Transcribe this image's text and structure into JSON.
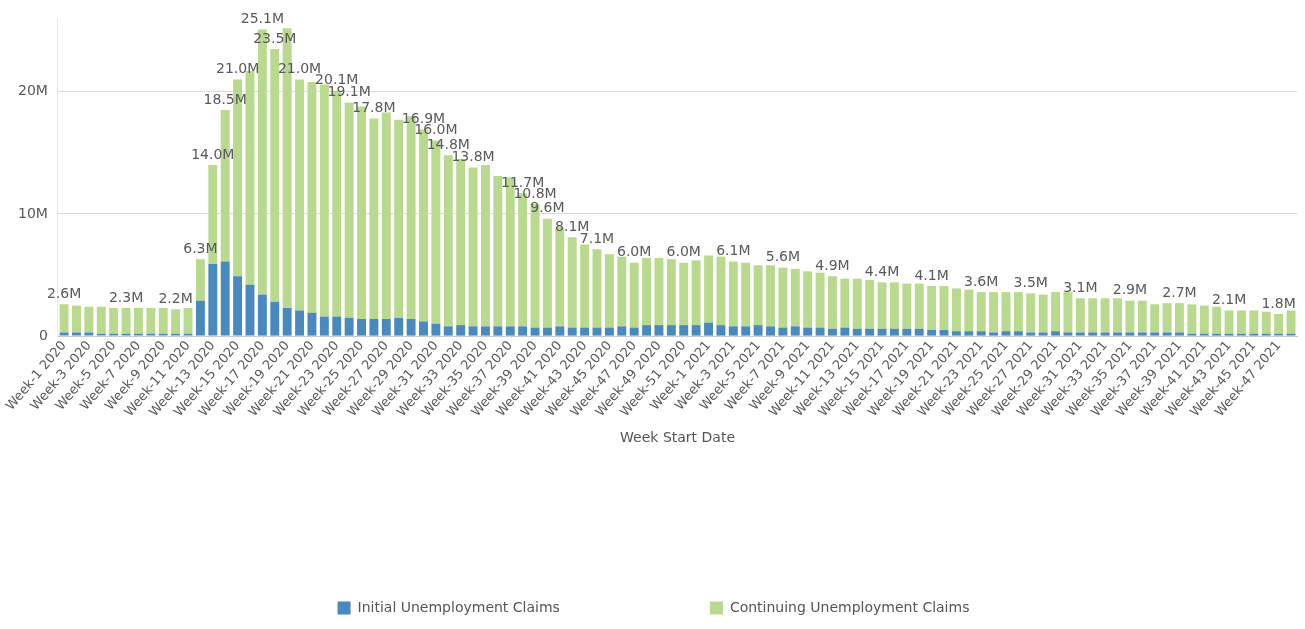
{
  "chart_data": {
    "type": "bar",
    "stacked": true,
    "xlabel": "Week Start Date",
    "categories": [
      "Week-1 2020",
      null,
      "Week-3 2020",
      null,
      "Week-5 2020",
      null,
      "Week-7 2020",
      null,
      "Week-9 2020",
      null,
      "Week-11 2020",
      null,
      "Week-13 2020",
      null,
      "Week-15 2020",
      null,
      "Week-17 2020",
      null,
      "Week-19 2020",
      null,
      "Week-21 2020",
      null,
      "Week-23 2020",
      null,
      "Week-25 2020",
      null,
      "Week-27 2020",
      null,
      "Week-29 2020",
      null,
      "Week-31 2020",
      null,
      "Week-33 2020",
      null,
      "Week-35 2020",
      null,
      "Week-37 2020",
      null,
      "Week-39 2020",
      null,
      "Week-41 2020",
      null,
      "Week-43 2020",
      null,
      "Week-45 2020",
      null,
      "Week-47 2020",
      null,
      "Week-49 2020",
      null,
      "Week-51 2020",
      null,
      "Week-1 2021",
      null,
      "Week-3 2021",
      null,
      "Week-5 2021",
      null,
      "Week-7 2021",
      null,
      "Week-9 2021",
      null,
      "Week-11 2021",
      null,
      "Week-13 2021",
      null,
      "Week-15 2021",
      null,
      "Week-17 2021",
      null,
      "Week-19 2021",
      null,
      "Week-21 2021",
      null,
      "Week-23 2021",
      null,
      "Week-25 2021",
      null,
      "Week-27 2021",
      null,
      "Week-29 2021",
      null,
      "Week-31 2021",
      null,
      "Week-33 2021",
      null,
      "Week-35 2021",
      null,
      "Week-37 2021",
      null,
      "Week-39 2021",
      null,
      "Week-41 2021",
      null,
      "Week-43 2021",
      null,
      "Week-45 2021",
      null,
      "Week-47 2021",
      null
    ],
    "series": [
      {
        "name": "Initial Unemployment Claims",
        "color": "#4a89bd",
        "values": [
          0.3,
          0.3,
          0.3,
          0.2,
          0.2,
          0.2,
          0.2,
          0.2,
          0.2,
          0.2,
          0.2,
          2.9,
          5.9,
          6.1,
          4.9,
          4.2,
          3.4,
          2.8,
          2.3,
          2.1,
          1.9,
          1.6,
          1.6,
          1.5,
          1.4,
          1.4,
          1.4,
          1.5,
          1.4,
          1.2,
          1.0,
          0.8,
          0.9,
          0.8,
          0.8,
          0.8,
          0.8,
          0.8,
          0.7,
          0.7,
          0.8,
          0.7,
          0.7,
          0.7,
          0.7,
          0.8,
          0.7,
          0.9,
          0.9,
          0.9,
          0.9,
          0.9,
          1.1,
          0.9,
          0.8,
          0.8,
          0.9,
          0.8,
          0.7,
          0.8,
          0.7,
          0.7,
          0.6,
          0.7,
          0.6,
          0.6,
          0.6,
          0.6,
          0.6,
          0.6,
          0.5,
          0.5,
          0.4,
          0.4,
          0.4,
          0.3,
          0.4,
          0.4,
          0.3,
          0.3,
          0.4,
          0.3,
          0.3,
          0.3,
          0.3,
          0.3,
          0.3,
          0.3,
          0.3,
          0.3,
          0.3,
          0.2,
          0.2,
          0.2,
          0.2,
          0.2,
          0.2,
          0.2,
          0.2,
          0.2
        ]
      },
      {
        "name": "Continuing Unemployment Claims",
        "color": "#b9d98e",
        "values": [
          2.3,
          2.2,
          2.1,
          2.2,
          2.1,
          2.1,
          2.1,
          2.1,
          2.1,
          2.0,
          2.1,
          3.4,
          8.1,
          12.4,
          16.1,
          17.5,
          21.7,
          20.7,
          22.9,
          18.9,
          18.9,
          19.0,
          18.5,
          17.6,
          17.4,
          16.4,
          16.9,
          16.2,
          16.6,
          15.7,
          15.0,
          14.0,
          13.6,
          13.0,
          13.2,
          12.3,
          12.2,
          10.9,
          10.1,
          8.9,
          8.1,
          7.4,
          6.8,
          6.4,
          6.0,
          5.7,
          5.3,
          5.5,
          5.5,
          5.4,
          5.1,
          5.3,
          5.5,
          5.6,
          5.3,
          5.2,
          4.9,
          5.0,
          4.9,
          4.7,
          4.6,
          4.5,
          4.3,
          4.0,
          4.1,
          4.0,
          3.8,
          3.8,
          3.7,
          3.7,
          3.6,
          3.6,
          3.5,
          3.4,
          3.2,
          3.3,
          3.2,
          3.2,
          3.2,
          3.1,
          3.2,
          3.3,
          2.8,
          2.8,
          2.8,
          2.8,
          2.6,
          2.6,
          2.3,
          2.4,
          2.4,
          2.4,
          2.3,
          2.2,
          1.9,
          1.9,
          1.9,
          1.8,
          1.6,
          1.9
        ]
      }
    ],
    "totals": [
      "2.6M",
      null,
      null,
      null,
      null,
      "2.3M",
      null,
      null,
      null,
      "2.2M",
      null,
      "6.3M",
      "14.0M",
      "18.5M",
      "21.0M",
      null,
      "25.1M",
      "23.5M",
      null,
      "21.0M",
      null,
      null,
      "20.1M",
      "19.1M",
      null,
      "17.8M",
      null,
      null,
      null,
      "16.9M",
      "16.0M",
      "14.8M",
      null,
      "13.8M",
      null,
      null,
      null,
      "11.7M",
      "10.8M",
      "9.6M",
      null,
      "8.1M",
      null,
      "7.1M",
      null,
      null,
      "6.0M",
      null,
      null,
      null,
      "6.0M",
      null,
      null,
      null,
      "6.1M",
      null,
      null,
      null,
      "5.6M",
      null,
      null,
      null,
      "4.9M",
      null,
      null,
      null,
      "4.4M",
      null,
      null,
      null,
      "4.1M",
      null,
      null,
      null,
      "3.6M",
      null,
      null,
      null,
      "3.5M",
      null,
      null,
      null,
      "3.1M",
      null,
      null,
      null,
      "2.9M",
      null,
      null,
      null,
      "2.7M",
      null,
      null,
      null,
      "2.1M",
      null,
      null,
      null,
      "1.8M",
      null
    ],
    "ylim": [
      0,
      26
    ],
    "yticks": [
      0,
      {
        "value": 10,
        "label": "10M"
      },
      {
        "value": 20,
        "label": "20M"
      }
    ],
    "grid": "y",
    "legend": "bottom"
  }
}
